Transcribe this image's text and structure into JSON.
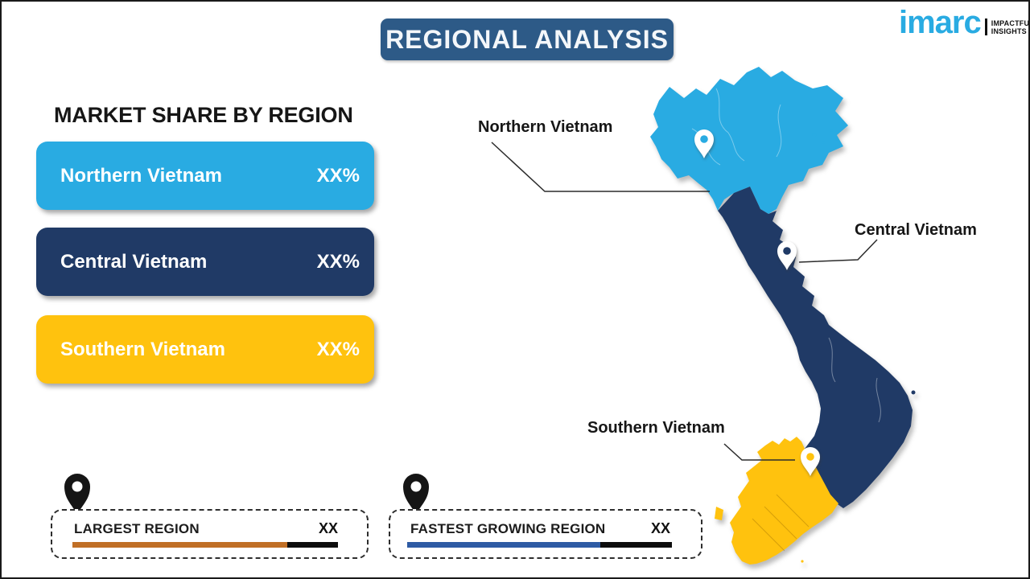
{
  "header": {
    "title": "REGIONAL ANALYSIS",
    "bg": "#2D5A87"
  },
  "logo": {
    "brand": "imarc",
    "brand_color": "#29ABE2",
    "tagline_top": "IMPACTFUL",
    "tagline_bottom": "INSIGHTS"
  },
  "market_share": {
    "heading": "MARKET SHARE BY REGION",
    "cards": [
      {
        "label": "Northern Vietnam",
        "value": "XX%",
        "color": "#29ABE2"
      },
      {
        "label": "Central Vietnam",
        "value": "XX%",
        "color": "#203A66"
      },
      {
        "label": "Southern Vietnam",
        "value": "XX%",
        "color": "#FFC20E"
      }
    ]
  },
  "map": {
    "region_colors": {
      "north": "#29ABE2",
      "central": "#203A66",
      "south": "#FFC20E"
    },
    "labels": [
      {
        "text": "Northern Vietnam"
      },
      {
        "text": "Central Vietnam"
      },
      {
        "text": "Southern Vietnam"
      }
    ]
  },
  "stats": [
    {
      "label": "LARGEST REGION",
      "value": "XX",
      "bar_color": "#C06F26",
      "bar_pct": 81
    },
    {
      "label": "FASTEST GROWING REGION",
      "value": "XX",
      "bar_color": "#2E5BA4",
      "bar_pct": 73
    }
  ]
}
